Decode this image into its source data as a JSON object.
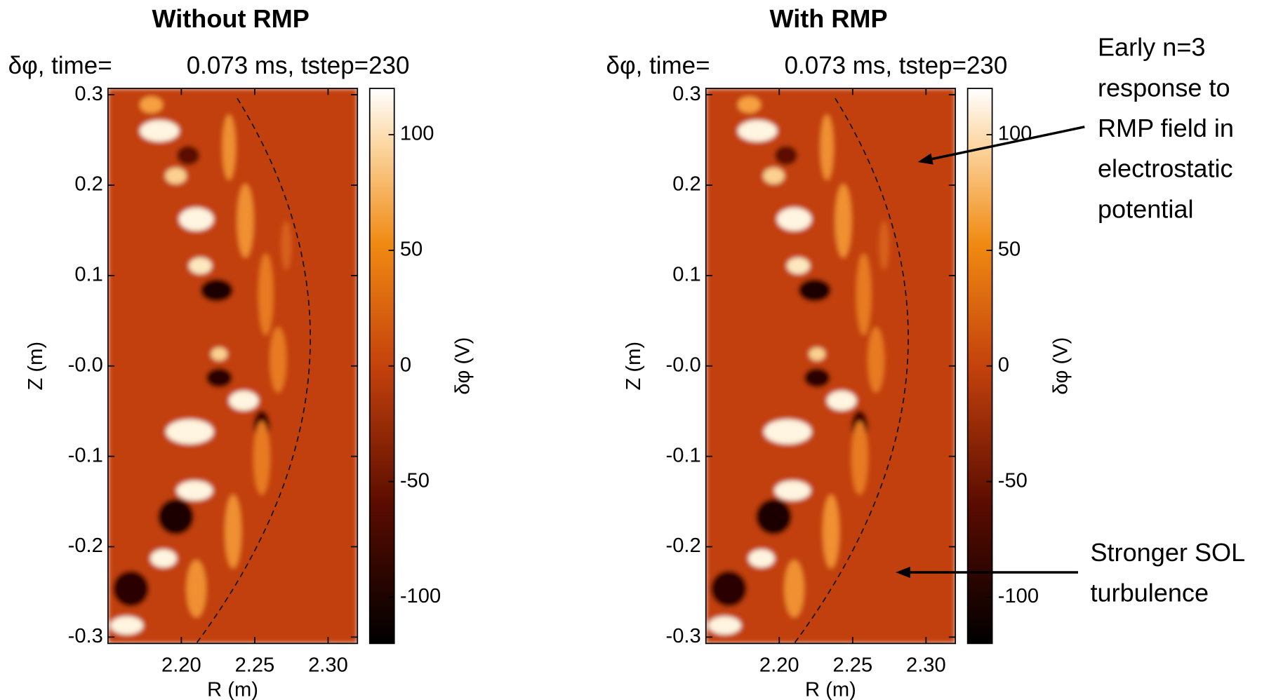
{
  "chart_data": [
    {
      "type": "heatmap",
      "title": "Without RMP",
      "subtitle_left": "δφ, time=",
      "subtitle_right": "0.073 ms, tstep=230",
      "xlabel": "R (m)",
      "ylabel": "Z (m)",
      "colorbar_label": "δφ (V)",
      "xlim": [
        2.15,
        2.32
      ],
      "xticks": [
        {
          "value": 2.2,
          "label": "2.20"
        },
        2.25,
        {
          "value": 2.3,
          "label": "2.30"
        }
      ],
      "ylim": [
        -0.307,
        0.307
      ],
      "yticks": [
        0.3,
        0.2,
        0.1,
        {
          "value": 0,
          "label": "-0.0"
        },
        -0.1,
        -0.2,
        -0.3
      ],
      "colorbar_lim": [
        -120,
        120
      ],
      "colorbar_ticks": [
        100,
        50,
        0,
        -50,
        -100
      ]
    },
    {
      "type": "heatmap",
      "title": "With RMP",
      "subtitle_left": "δφ, time=",
      "subtitle_right": "0.073 ms, tstep=230",
      "xlabel": "R (m)",
      "ylabel": "Z (m)",
      "colorbar_label": "δφ (V)",
      "xlim": [
        2.15,
        2.32
      ],
      "xticks": [
        {
          "value": 2.2,
          "label": "2.20"
        },
        2.25,
        {
          "value": 2.3,
          "label": "2.30"
        }
      ],
      "ylim": [
        -0.307,
        0.307
      ],
      "yticks": [
        0.3,
        0.2,
        0.1,
        {
          "value": 0,
          "label": "-0.0"
        },
        -0.1,
        -0.2,
        -0.3
      ],
      "colorbar_lim": [
        -120,
        120
      ],
      "colorbar_ticks": [
        100,
        50,
        0,
        -50,
        -100
      ],
      "annotations": [
        {
          "lines": [
            "Early n=3",
            "response to",
            "RMP field in",
            "electrostatic",
            "potential"
          ]
        },
        {
          "lines": [
            "Stronger SOL",
            "turbulence"
          ]
        }
      ]
    }
  ]
}
